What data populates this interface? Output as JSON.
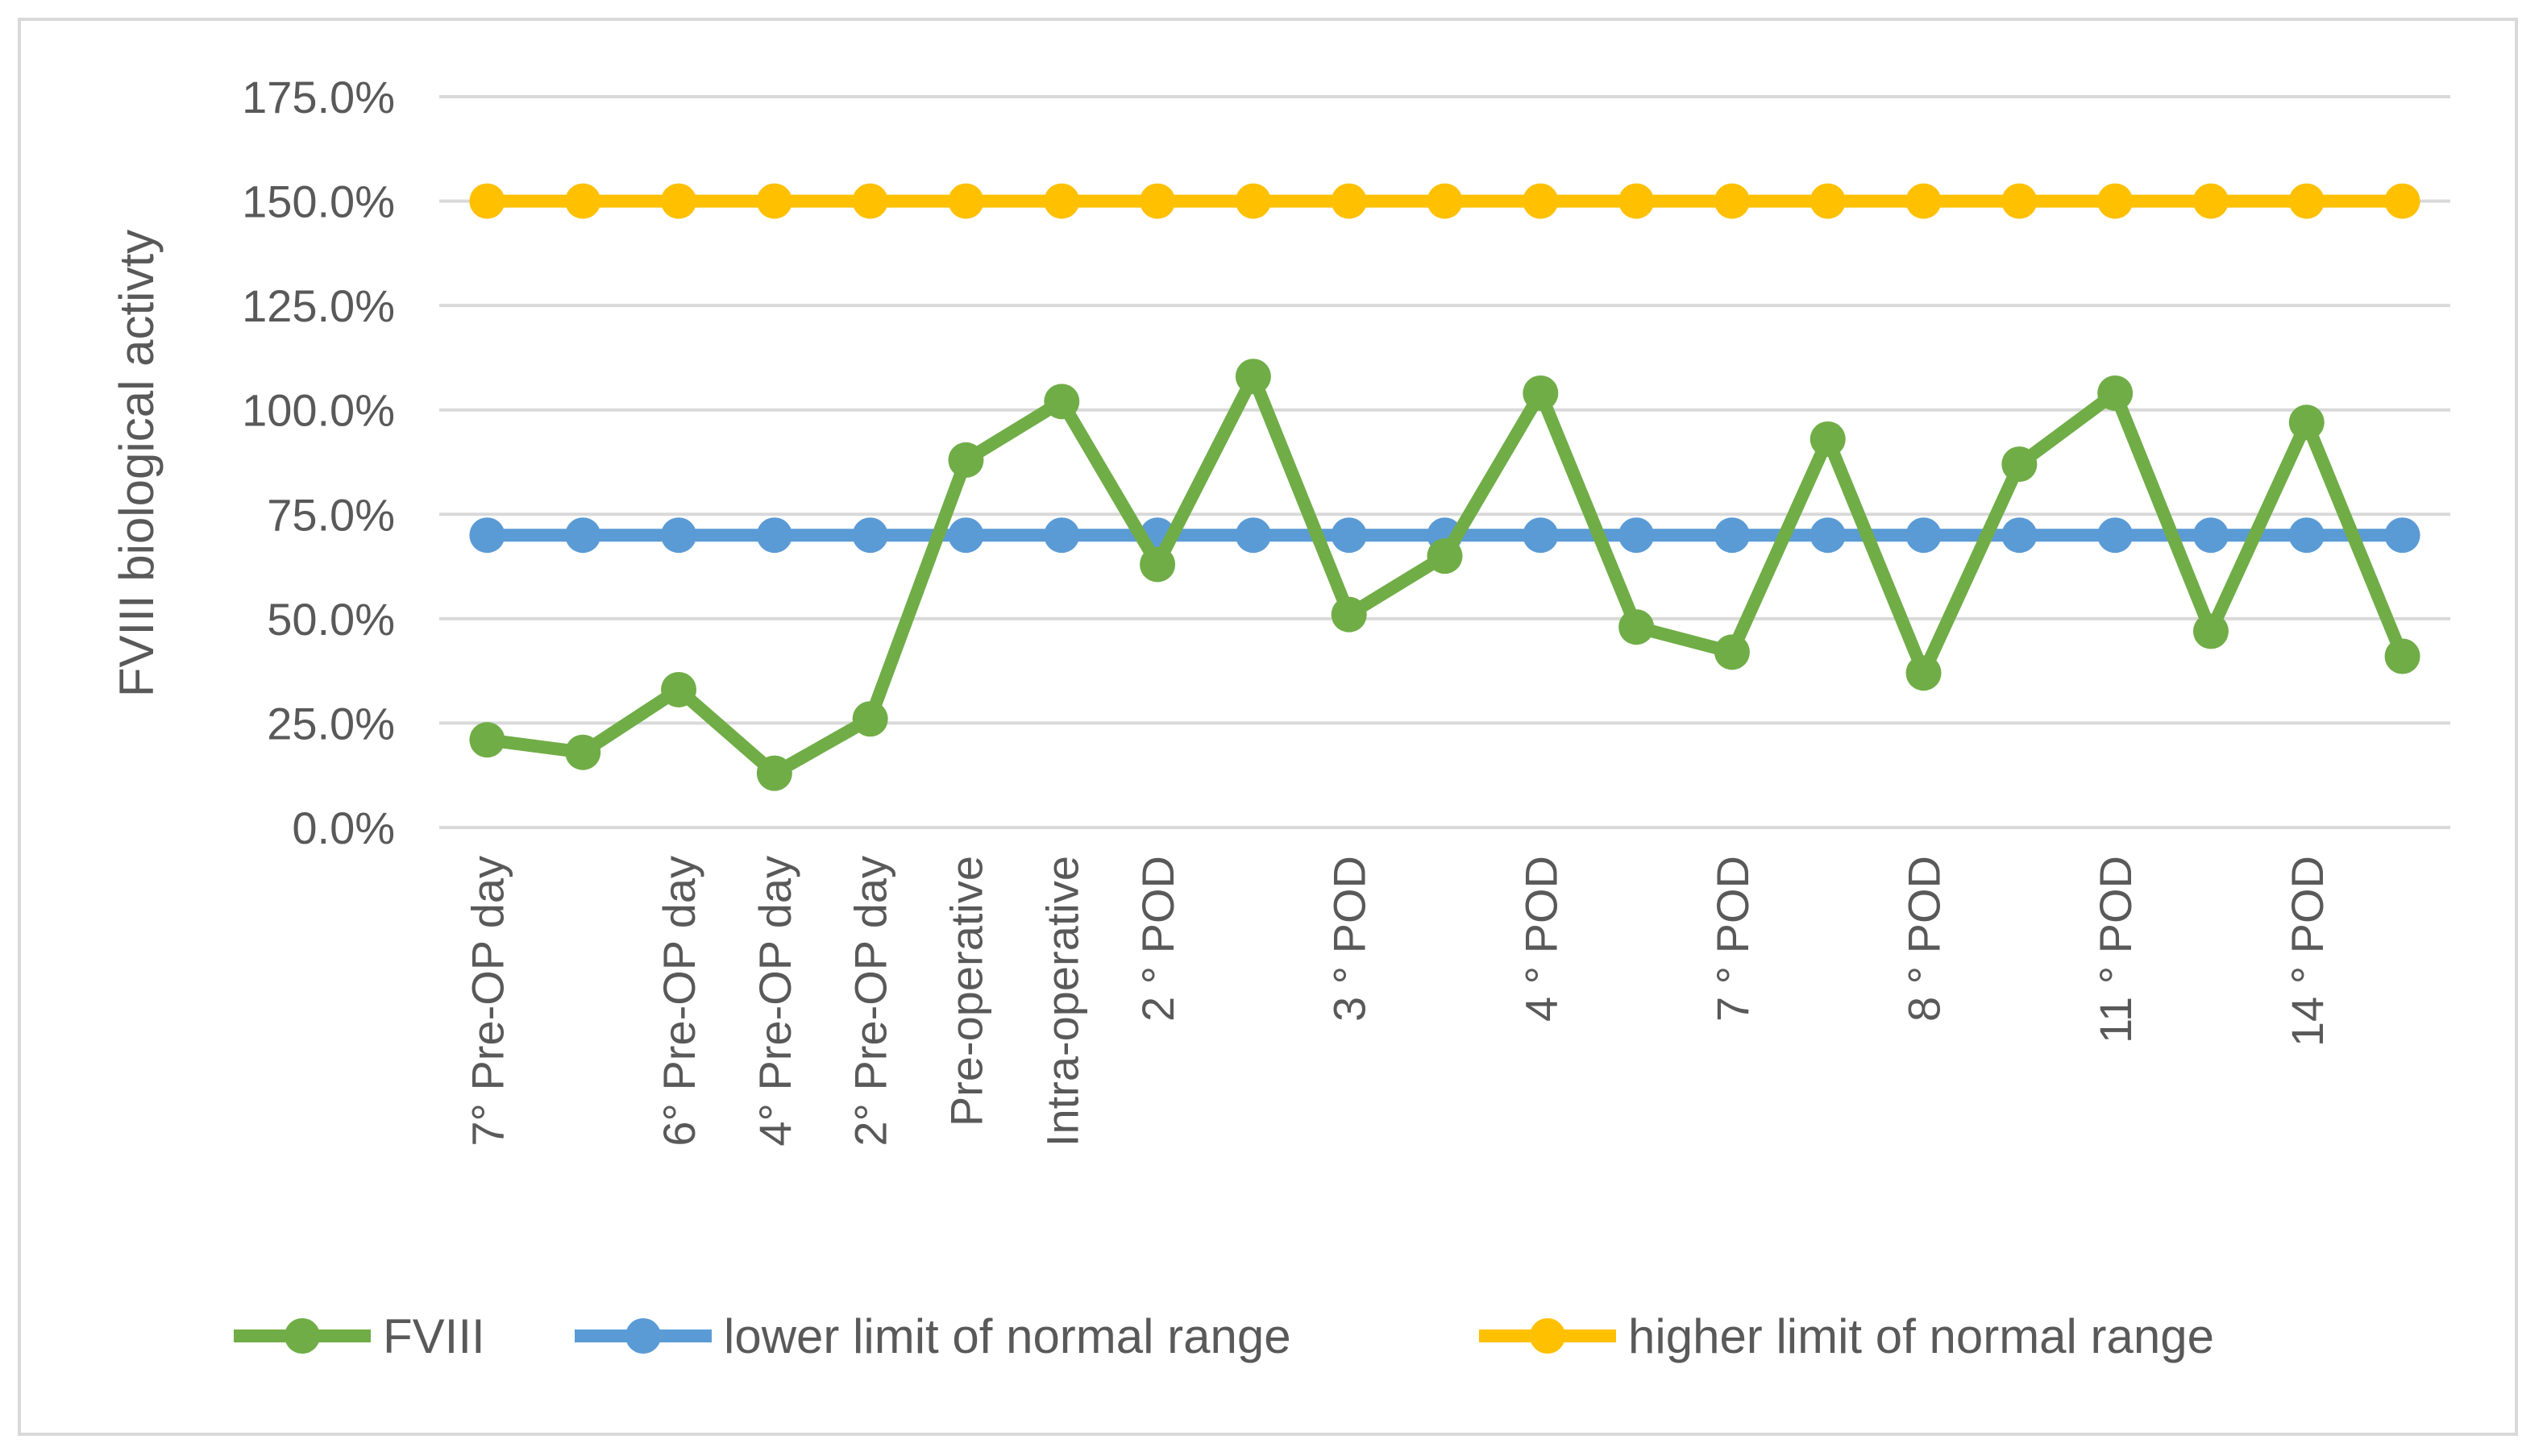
{
  "chart_data": {
    "type": "line",
    "title": "",
    "xlabel": "",
    "ylabel": "FVIII biological activty",
    "ylim": [
      0,
      175
    ],
    "yticks": [
      0,
      25,
      50,
      75,
      100,
      125,
      150,
      175
    ],
    "ytick_labels": [
      "0.0%",
      "25.0%",
      "50.0%",
      "75.0%",
      "100.0%",
      "125.0%",
      "150.0%",
      "175.0%"
    ],
    "grid": true,
    "legend_position": "bottom",
    "categories": [
      "7° Pre-OP day",
      "",
      "6° Pre-OP day",
      "4° Pre-OP day",
      "2° Pre-OP day",
      "Pre-operative",
      "Intra-operative",
      "2 ° POD",
      "",
      "3 ° POD",
      "",
      "4 ° POD",
      "",
      "7 ° POD",
      "",
      "8 ° POD",
      "",
      "11 ° POD",
      "",
      "14 ° POD",
      ""
    ],
    "series": [
      {
        "name": "FVIII",
        "color": "#70ad47",
        "values": [
          21,
          18,
          33,
          13,
          26,
          88,
          102,
          63,
          108,
          51,
          65,
          104,
          48,
          42,
          93,
          37,
          87,
          104,
          47,
          97,
          41
        ]
      },
      {
        "name": "lower limit of normal range",
        "color": "#5b9bd5",
        "values": [
          70,
          70,
          70,
          70,
          70,
          70,
          70,
          70,
          70,
          70,
          70,
          70,
          70,
          70,
          70,
          70,
          70,
          70,
          70,
          70,
          70
        ]
      },
      {
        "name": "higher limit of normal range",
        "color": "#ffc000",
        "values": [
          150,
          150,
          150,
          150,
          150,
          150,
          150,
          150,
          150,
          150,
          150,
          150,
          150,
          150,
          150,
          150,
          150,
          150,
          150,
          150,
          150
        ]
      }
    ]
  }
}
